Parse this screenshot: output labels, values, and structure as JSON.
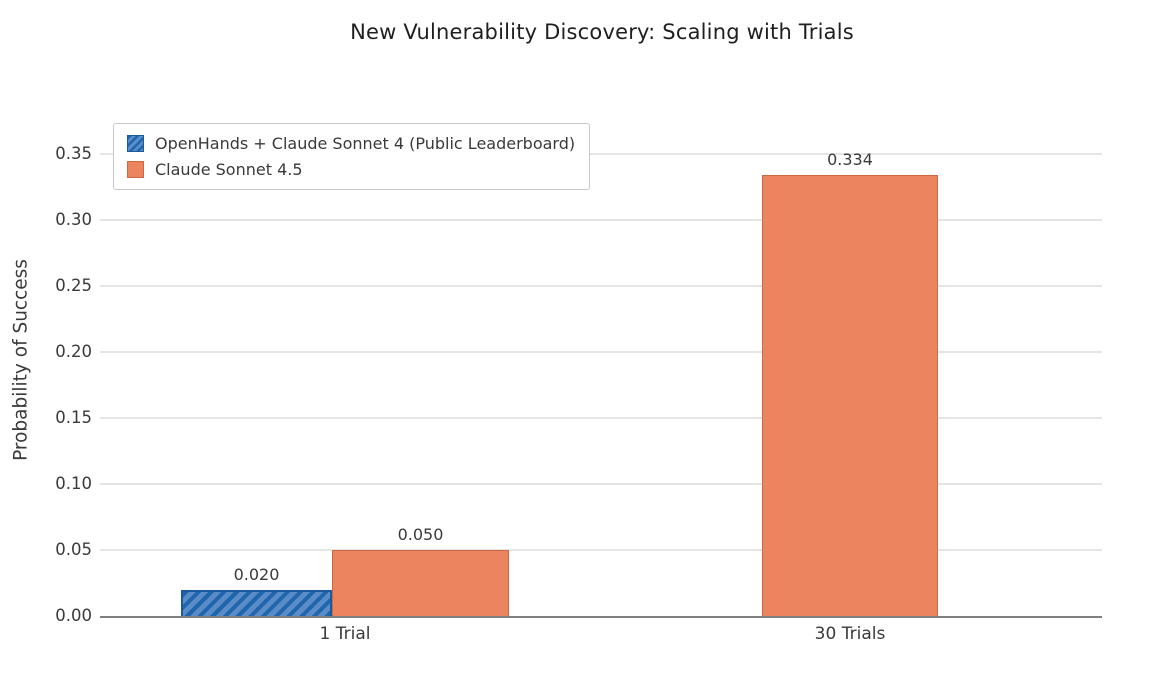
{
  "chart_data": {
    "type": "bar",
    "title": "New Vulnerability Discovery: Scaling with Trials",
    "ylabel": "Probability of Success",
    "xlabel": "",
    "categories": [
      "1 Trial",
      "30 Trials"
    ],
    "series": [
      {
        "name": "OpenHands + Claude Sonnet 4 (Public Leaderboard)",
        "style": "blue-hatched",
        "hatch": "/",
        "values": [
          0.02,
          null
        ]
      },
      {
        "name": "Claude Sonnet 4.5",
        "style": "orange-solid",
        "hatch": null,
        "values": [
          0.05,
          0.334
        ]
      }
    ],
    "bar_value_labels": [
      "0.020",
      "0.050",
      "0.334"
    ],
    "ylim": [
      0,
      0.3795
    ],
    "yticks": [
      0,
      0.05,
      0.1,
      0.15,
      0.2,
      0.25,
      0.3,
      0.35
    ],
    "ytick_labels": [
      "0.00",
      "0.05",
      "0.10",
      "0.15",
      "0.20",
      "0.25",
      "0.30",
      "0.35"
    ],
    "grid": "horizontal",
    "legend_position": "upper-left"
  },
  "colors": {
    "background": "#FFFFFF",
    "title_text": "#1F1F1F",
    "axis_text": "#3A3A3A",
    "spine": "#808080",
    "gridline": "#E5E5E5",
    "legend_border": "#C9C9C9",
    "blue_face": "#5A8CC8",
    "blue_hatch": "#2066AC",
    "blue_edge": "#1B5A9E",
    "orange_face": "#EC845F",
    "orange_edge": "#C96A43"
  }
}
